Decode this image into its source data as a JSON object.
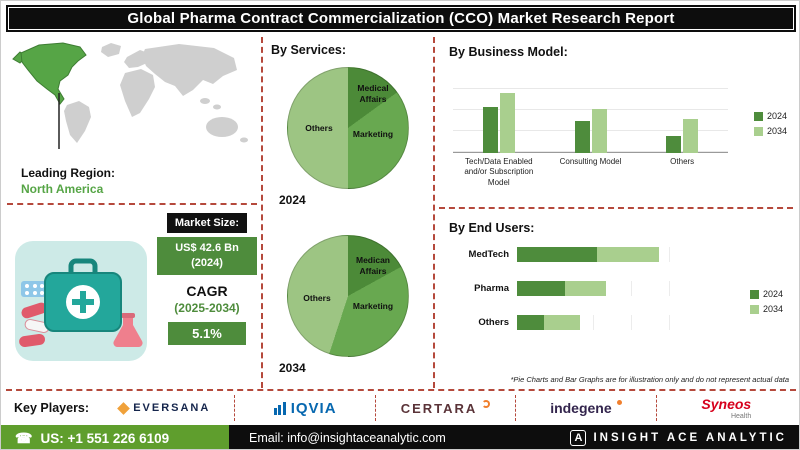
{
  "title": "Global Pharma Contract Commercialization (CCO) Market Research Report",
  "leading_region": {
    "label": "Leading Region:",
    "value": "North America"
  },
  "market": {
    "size_label": "Market Size:",
    "size_value": "US$ 42.6 Bn (2024)",
    "cagr_label": "CAGR",
    "cagr_period": "(2025-2034)",
    "cagr_value": "5.1%"
  },
  "sections": {
    "services_heading": "By Services:",
    "business_model_heading": "By Business Model:",
    "end_users_heading": "By End Users:"
  },
  "footnote": "*Pie Charts and Bar Graphs are for illustration only and do not represent actual data",
  "key_players": {
    "label": "Key Players:",
    "companies": [
      {
        "name": "EVERSANA"
      },
      {
        "name": "IQVIA"
      },
      {
        "name": "CERTARA"
      },
      {
        "name": "indegene"
      },
      {
        "name": "Syneos",
        "sub": "Health"
      }
    ]
  },
  "footer": {
    "phone": "US: +1 551 226 6109",
    "email": "Email: info@insightaceanalytic.com",
    "brand": "INSIGHT ACE ANALYTIC"
  },
  "colors": {
    "green_dark": "#4e8c3c",
    "green_light": "#a9cf8e",
    "pie": [
      "#4c8a38",
      "#68a850",
      "#9dc583"
    ],
    "red_dash": "#b5493c",
    "teal": "#23a79b",
    "footer_green": "#5f9e2d",
    "header_bg": "#0d0d0d"
  },
  "chart_data": [
    {
      "type": "pie",
      "title": "By Services - 2024",
      "year": "2024",
      "labels": [
        "Medical Affairs",
        "Marketing",
        "Others"
      ],
      "values": [
        15,
        35,
        50
      ],
      "note": "illustrative only per footnote"
    },
    {
      "type": "pie",
      "title": "By Services - 2034",
      "year": "2034",
      "labels": [
        "Medican Affairs",
        "Marketing",
        "Others"
      ],
      "values": [
        17,
        38,
        45
      ],
      "note": "illustrative only per footnote"
    },
    {
      "type": "bar",
      "title": "By Business Model",
      "categories": [
        "Tech/Data Enabled and/or Subscription Model",
        "Consulting Model",
        "Others"
      ],
      "series": [
        {
          "name": "2024",
          "values": [
            55,
            38,
            20
          ]
        },
        {
          "name": "2034",
          "values": [
            72,
            52,
            40
          ]
        }
      ],
      "ylim": [
        0,
        100
      ],
      "grid": true,
      "legend_position": "right",
      "note": "no axis labels shown; values estimated, illustrative only per footnote"
    },
    {
      "type": "bar",
      "orientation": "horizontal",
      "stacked": true,
      "title": "By End Users",
      "categories": [
        "MedTech",
        "Pharma",
        "Others"
      ],
      "series": [
        {
          "name": "2024",
          "values": [
            42,
            25,
            14
          ]
        },
        {
          "name": "2034",
          "values": [
            33,
            22,
            19
          ]
        }
      ],
      "xlim": [
        0,
        100
      ],
      "grid": true,
      "legend_position": "right",
      "note": "no axis labels shown; values estimated, illustrative only per footnote"
    }
  ]
}
